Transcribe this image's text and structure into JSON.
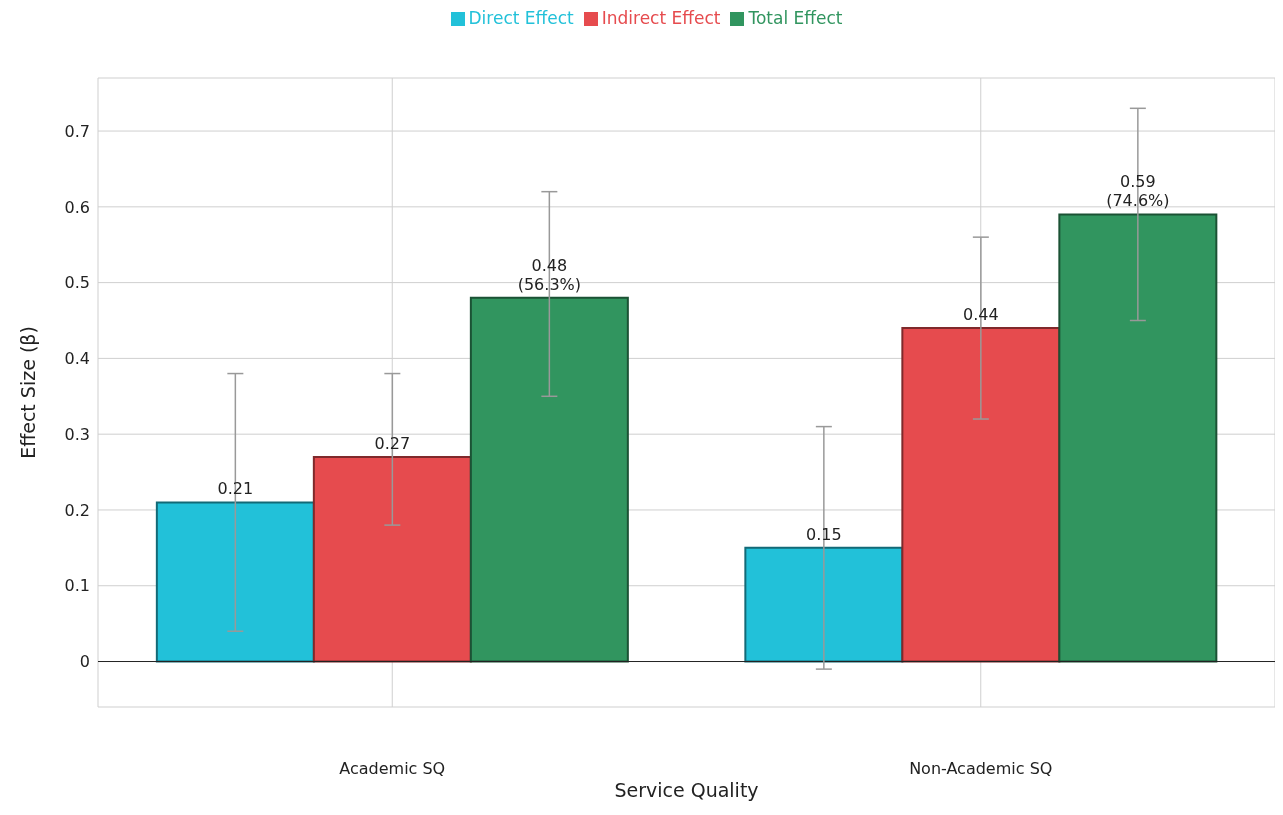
{
  "chart_data": {
    "type": "bar",
    "xlabel": "Service Quality",
    "ylabel": "Effect Size (β)",
    "categories": [
      "Academic SQ",
      "Non-Academic SQ"
    ],
    "series": [
      {
        "name": "Direct Effect",
        "color": "#22c1d9",
        "values": [
          0.21,
          0.15
        ],
        "errors": [
          [
            0.04,
            0.38
          ],
          [
            -0.01,
            0.31
          ]
        ],
        "value_labels": [
          "0.21",
          "0.15"
        ]
      },
      {
        "name": "Indirect Effect",
        "color": "#e64b4e",
        "values": [
          0.27,
          0.44
        ],
        "errors": [
          [
            0.18,
            0.38
          ],
          [
            0.32,
            0.56
          ]
        ],
        "value_labels": [
          "0.27",
          "0.44"
        ]
      },
      {
        "name": "Total Effect",
        "color": "#31955f",
        "values": [
          0.48,
          0.59
        ],
        "errors": [
          [
            0.35,
            0.62
          ],
          [
            0.45,
            0.73
          ]
        ],
        "value_labels": [
          "0.48\n(56.3%)",
          "0.59\n(74.6%)"
        ]
      }
    ],
    "ylim": [
      -0.06,
      0.77
    ],
    "yticks": [
      0,
      0.1,
      0.2,
      0.3,
      0.4,
      0.5,
      0.6,
      0.7
    ],
    "grid": true,
    "legend": "top"
  }
}
